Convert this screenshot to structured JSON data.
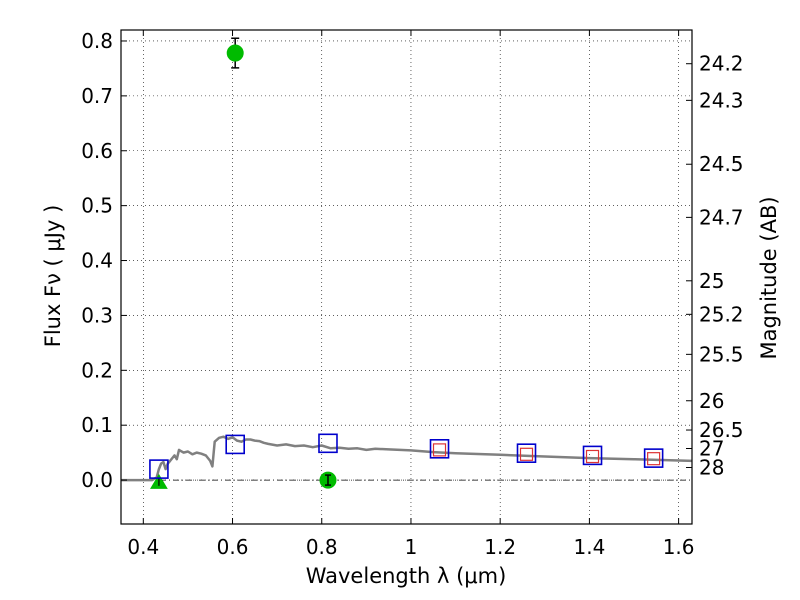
{
  "chart_data": {
    "type": "scatter",
    "xlabel": "Wavelength  λ (μm)",
    "ylabel": "Flux  Fν  ( μJy )",
    "y2label": "Magnitude (AB)",
    "xlim": [
      0.35,
      1.63
    ],
    "ylim": [
      -0.08,
      0.82
    ],
    "grid": true,
    "x_ticks": [
      0.4,
      0.6,
      0.8,
      1.0,
      1.2,
      1.4,
      1.6
    ],
    "x_tick_labels": [
      "0.4",
      "0.6",
      "0.8",
      "1",
      "1.2",
      "1.4",
      "1.6"
    ],
    "y_ticks": [
      0.0,
      0.1,
      0.2,
      0.3,
      0.4,
      0.5,
      0.6,
      0.7,
      0.8
    ],
    "y_tick_labels": [
      "0.0",
      "0.1",
      "0.2",
      "0.3",
      "0.4",
      "0.5",
      "0.6",
      "0.7",
      "0.8"
    ],
    "magnitude_ticks": [
      "24.2",
      "24.3",
      "24.5",
      "24.7",
      "25",
      "25.2",
      "25.5",
      "26",
      "26.5",
      "27",
      "28"
    ],
    "model_sed": {
      "color": "#808080",
      "x": [
        0.35,
        0.42,
        0.43,
        0.435,
        0.44,
        0.445,
        0.45,
        0.455,
        0.46,
        0.47,
        0.475,
        0.48,
        0.49,
        0.5,
        0.51,
        0.52,
        0.53,
        0.54,
        0.55,
        0.555,
        0.56,
        0.57,
        0.58,
        0.59,
        0.6,
        0.61,
        0.62,
        0.63,
        0.64,
        0.65,
        0.66,
        0.67,
        0.68,
        0.7,
        0.72,
        0.74,
        0.76,
        0.78,
        0.8,
        0.82,
        0.84,
        0.86,
        0.88,
        0.9,
        0.92,
        0.95,
        1.0,
        1.05,
        1.1,
        1.2,
        1.3,
        1.4,
        1.5,
        1.63
      ],
      "y": [
        0.0,
        0.0,
        0.005,
        0.02,
        0.03,
        0.033,
        0.02,
        0.03,
        0.035,
        0.045,
        0.038,
        0.055,
        0.05,
        0.052,
        0.047,
        0.05,
        0.048,
        0.045,
        0.035,
        0.025,
        0.07,
        0.077,
        0.079,
        0.075,
        0.078,
        0.072,
        0.07,
        0.074,
        0.074,
        0.072,
        0.071,
        0.068,
        0.066,
        0.063,
        0.065,
        0.062,
        0.063,
        0.06,
        0.063,
        0.058,
        0.059,
        0.057,
        0.058,
        0.055,
        0.057,
        0.056,
        0.054,
        0.051,
        0.049,
        0.046,
        0.043,
        0.04,
        0.038,
        0.035
      ]
    },
    "series": [
      {
        "marker": "circle",
        "color": "#00bb00",
        "points": [
          {
            "x": 0.606,
            "y": 0.778,
            "err": 0.027
          },
          {
            "x": 0.814,
            "y": 0.0,
            "err": 0.005
          }
        ]
      },
      {
        "marker": "triangle",
        "color": "#00bb00",
        "points": [
          {
            "x": 0.435,
            "y": -0.005,
            "err": 0.006
          }
        ]
      },
      {
        "marker": "open-square",
        "color": "#0000cc",
        "points": [
          {
            "x": 0.435,
            "y": 0.02
          },
          {
            "x": 0.606,
            "y": 0.065
          },
          {
            "x": 0.814,
            "y": 0.067
          },
          {
            "x": 1.064,
            "y": 0.057
          },
          {
            "x": 1.259,
            "y": 0.049
          },
          {
            "x": 1.407,
            "y": 0.045
          },
          {
            "x": 1.544,
            "y": 0.04
          }
        ]
      },
      {
        "marker": "open-square-small",
        "color": "#dd3333",
        "points": [
          {
            "x": 1.064,
            "y": 0.055
          },
          {
            "x": 1.259,
            "y": 0.047
          },
          {
            "x": 1.407,
            "y": 0.043
          },
          {
            "x": 1.544,
            "y": 0.039
          }
        ]
      }
    ]
  }
}
